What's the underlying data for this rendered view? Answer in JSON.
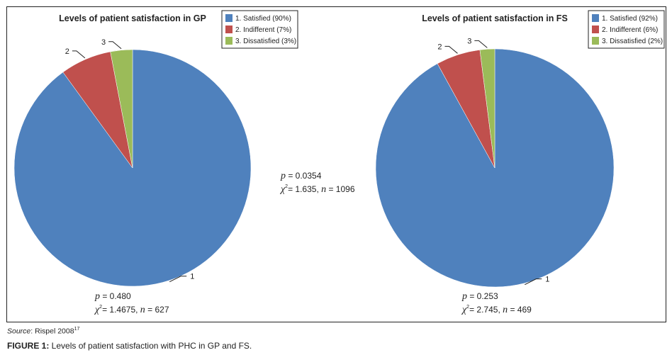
{
  "chart_data": [
    {
      "type": "pie",
      "title": "Levels of patient satisfaction in GP",
      "categories": [
        "1. Satisfied (90%)",
        "2. Indifferent (7%)",
        "3. Dissatisfied (3%)"
      ],
      "slice_labels": [
        "1",
        "2",
        "3"
      ],
      "values": [
        90,
        7,
        3
      ],
      "colors": [
        "#4f81bd",
        "#c0504d",
        "#9bbb59"
      ],
      "legend": "top-right",
      "stats": {
        "p": "0.480",
        "chi2": "1.4675",
        "n": "627"
      }
    },
    {
      "type": "pie",
      "title": "Levels of patient satisfaction in FS",
      "categories": [
        "1. Satisfied (92%)",
        "2. Indifferent (6%)",
        "3. Dissatisfied (2%)"
      ],
      "slice_labels": [
        "1",
        "2",
        "3"
      ],
      "values": [
        92,
        6,
        2
      ],
      "colors": [
        "#4f81bd",
        "#c0504d",
        "#9bbb59"
      ],
      "legend": "top-right",
      "stats": {
        "p": "0.253",
        "chi2": "2.745",
        "n": "469"
      }
    }
  ],
  "overall_stats": {
    "p": "0.0354",
    "chi2": "1.635",
    "n": "1096"
  },
  "source": {
    "label": "Source",
    "text": ": Rispel 2008",
    "ref": "17"
  },
  "caption": {
    "label": "FIGURE 1:",
    "text": " Levels of patient satisfaction with PHC in GP and FS."
  }
}
